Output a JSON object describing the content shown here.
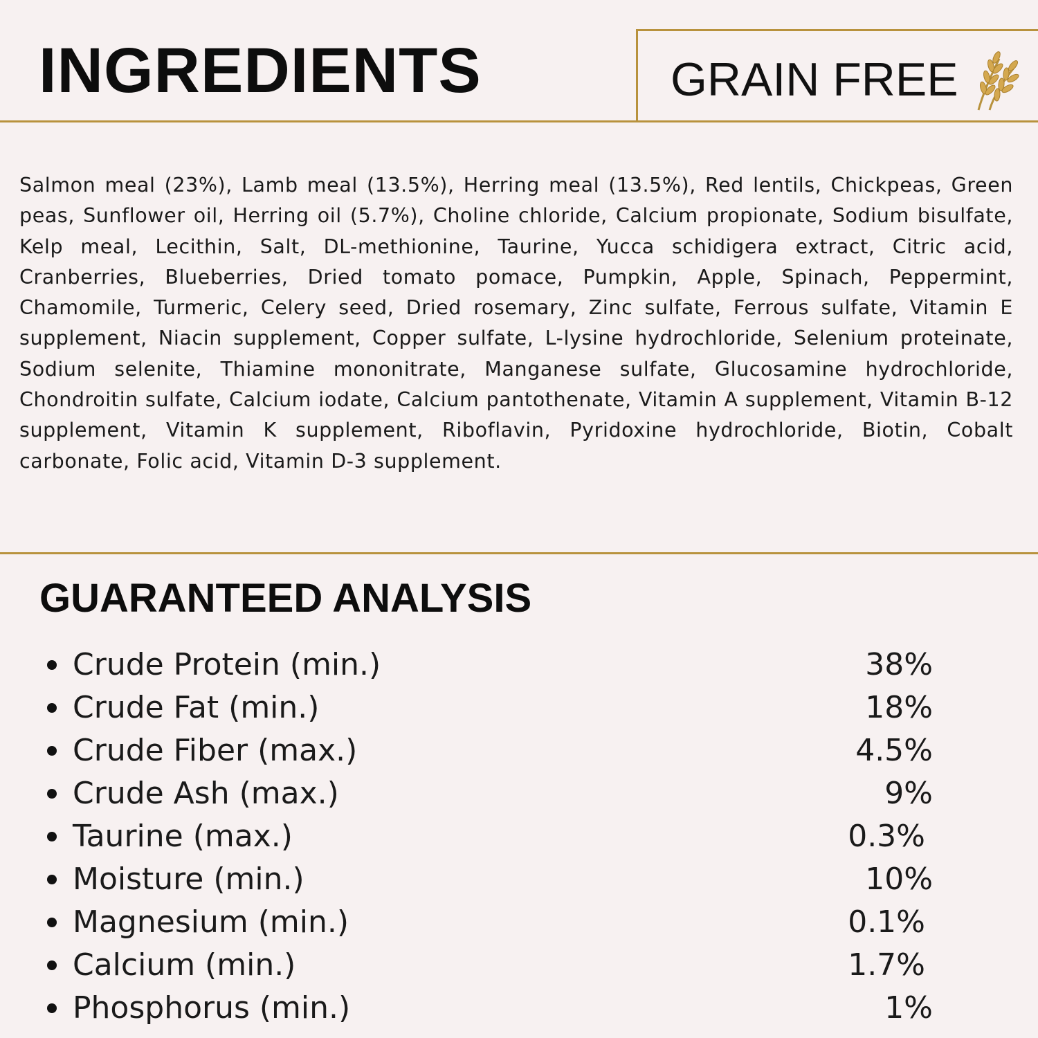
{
  "header": {
    "title": "INGREDIENTS",
    "badge_text": "GRAIN FREE",
    "badge_icon": "wheat-icon",
    "accent_color": "#b8923d"
  },
  "ingredients": {
    "text": "Salmon meal (23%), Lamb meal (13.5%), Herring meal (13.5%), Red lentils, Chickpeas, Green peas, Sunflower oil, Herring oil (5.7%), Choline chloride, Calcium propionate, Sodium bisulfate, Kelp meal, Lecithin, Salt, DL-methionine, Taurine, Yucca schidigera extract, Citric acid, Cranberries, Blueberries, Dried tomato pomace, Pumpkin, Apple, Spinach, Peppermint, Chamomile, Turmeric, Celery seed, Dried rosemary, Zinc sulfate, Ferrous sulfate, Vitamin E supplement, Niacin supplement, Copper sulfate, L-lysine hydrochloride, Selenium proteinate, Sodium selenite, Thiamine mononitrate, Manganese sulfate, Glucosamine hydrochloride, Chondroitin sulfate, Calcium iodate, Calcium pantothenate, Vitamin A supplement, Vitamin B-12 supplement, Vitamin K supplement, Riboflavin, Pyridoxine hydrochloride, Biotin, Cobalt carbonate, Folic acid, Vitamin D-3 supplement."
  },
  "analysis": {
    "title": "GUARANTEED ANALYSIS",
    "rows": [
      {
        "label": "Crude Protein (min.)",
        "value": "38%"
      },
      {
        "label": "Crude Fat (min.)",
        "value": "18%"
      },
      {
        "label": "Crude Fiber (max.)",
        "value": "4.5%"
      },
      {
        "label": "Crude Ash (max.)",
        "value": "9%"
      },
      {
        "label": "Taurine (max.)",
        "value": "0.3%"
      },
      {
        "label": "Moisture (min.)",
        "value": "10%"
      },
      {
        "label": "Magnesium (min.)",
        "value": "0.1%"
      },
      {
        "label": "Calcium (min.)",
        "value": "1.7%"
      },
      {
        "label": "Phosphorus (min.)",
        "value": "1%"
      }
    ]
  }
}
